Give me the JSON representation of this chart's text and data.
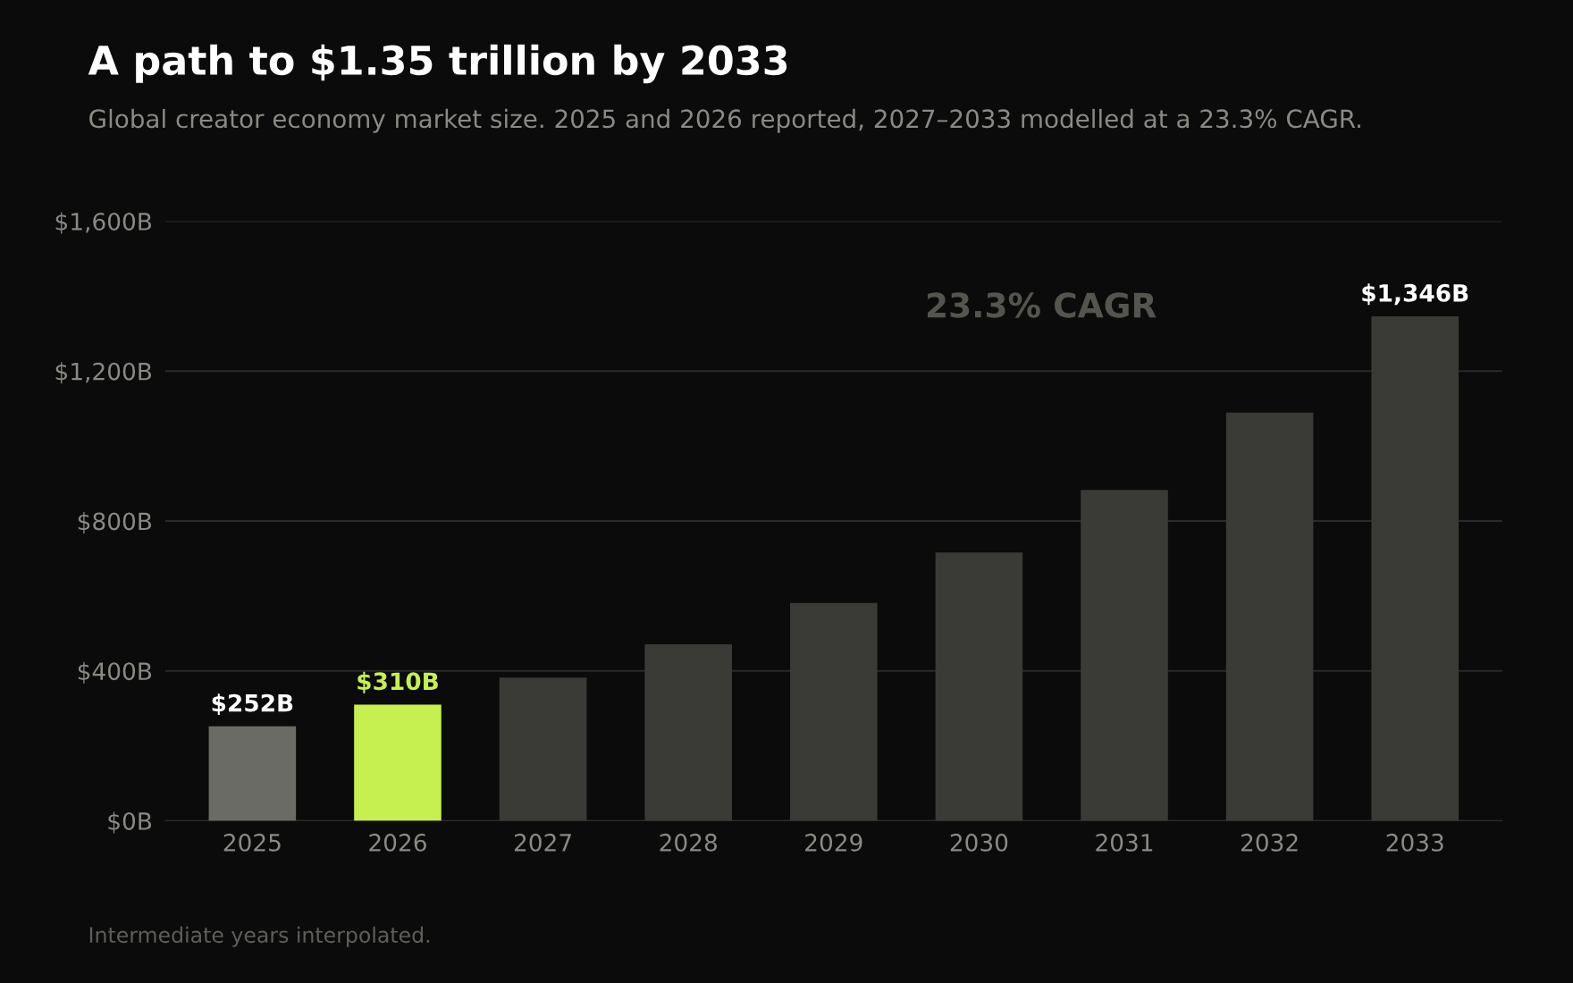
{
  "chart_data": {
    "type": "bar",
    "title": "A path to $1.35 trillion by 2033",
    "subtitle": "Global creator economy market size. 2025 and 2026 reported, 2027–2033 modelled at a 23.3% CAGR.",
    "categories": [
      "2025",
      "2026",
      "2027",
      "2028",
      "2029",
      "2030",
      "2031",
      "2032",
      "2033"
    ],
    "values": [
      252,
      310,
      382,
      471,
      581,
      716,
      883,
      1089,
      1346
    ],
    "colors": [
      "#6b6b66",
      "#c5f04f",
      "#3a3a36",
      "#3a3a36",
      "#3a3a36",
      "#3a3a36",
      "#3a3a36",
      "#3a3a36",
      "#3a3a36"
    ],
    "value_labels": [
      "$252B",
      "$310B",
      null,
      null,
      null,
      null,
      null,
      null,
      "$1,346B"
    ],
    "ylim": [
      0,
      1600
    ],
    "yticks": [
      {
        "value": 0,
        "label": "$0B"
      },
      {
        "value": 400,
        "label": "$400B"
      },
      {
        "value": 800,
        "label": "$800B"
      },
      {
        "value": 1200,
        "label": "$1,200B"
      },
      {
        "value": 1600,
        "label": "$1,600B"
      }
    ],
    "grid": "y",
    "annotations": [
      "23.3% CAGR",
      "Intermediate years interpolated."
    ]
  }
}
